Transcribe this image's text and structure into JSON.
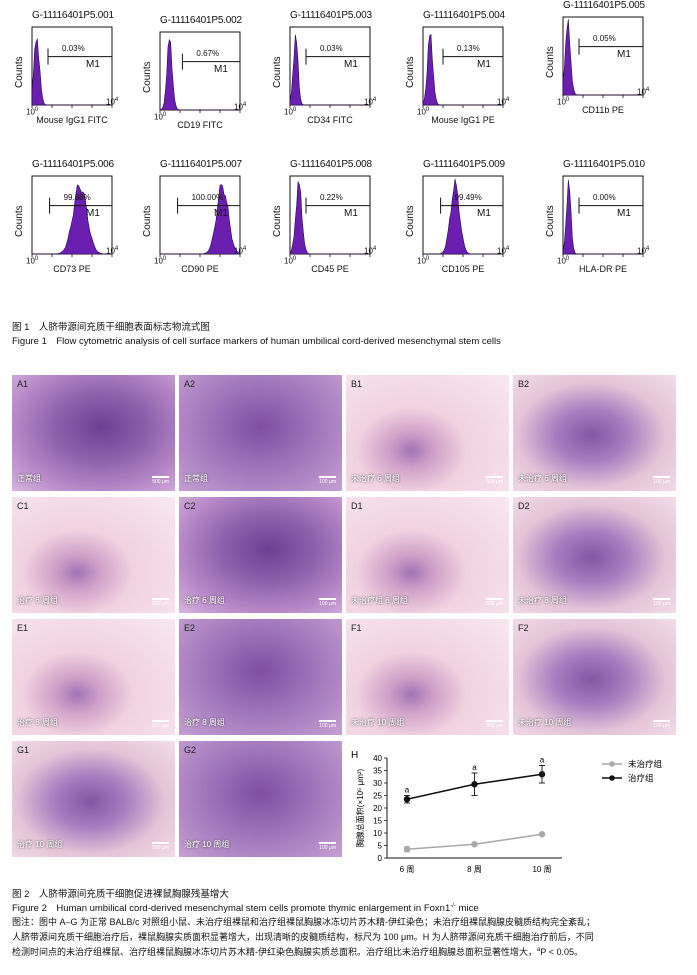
{
  "figure1": {
    "panels": [
      {
        "id": "G-11116401P5.001",
        "pct": "0.03%",
        "gate": "M1",
        "marker": "Mouse IgG1 FITC",
        "counts": "Counts"
      },
      {
        "id": "G-11116401P5.002",
        "pct": "0.67%",
        "gate": "M1",
        "marker": "CD19 FITC",
        "counts": "Counts"
      },
      {
        "id": "G-11116401P5.003",
        "pct": "0.03%",
        "gate": "M1",
        "marker": "CD34 FITC",
        "counts": "Counts"
      },
      {
        "id": "G-11116401P5.004",
        "pct": "0.13%",
        "gate": "M1",
        "marker": "Mouse IgG1 PE",
        "counts": "Counts"
      },
      {
        "id": "G-11116401P5.005",
        "pct": "0.05%",
        "gate": "M1",
        "marker": "CD11b PE",
        "counts": "Counts"
      },
      {
        "id": "G-11116401P5.006",
        "pct": "99.68%",
        "gate": "M1",
        "marker": "CD73 PE",
        "counts": "Counts"
      },
      {
        "id": "G-11116401P5.007",
        "pct": "100.00%",
        "gate": "M1",
        "marker": "CD90 PE",
        "counts": "Counts"
      },
      {
        "id": "G-11116401P5.008",
        "pct": "0.22%",
        "gate": "M1",
        "marker": "CD45 PE",
        "counts": "Counts"
      },
      {
        "id": "G-11116401P5.009",
        "pct": "99.49%",
        "gate": "M1",
        "marker": "CD105 PE",
        "counts": "Counts"
      },
      {
        "id": "G-11116401P5.010",
        "pct": "0.00%",
        "gate": "M1",
        "marker": "HLA-DR PE",
        "counts": "Counts"
      }
    ],
    "tick_base": "10",
    "tick_exp_min": "0",
    "tick_exp_max": "4",
    "caption_cn": "图 1　人脐带源间充质干细胞表面标志物流式图",
    "caption_en": "Figure 1　Flow cytometric analysis of cell surface markers of human umbilical cord-derived mesenchymal stem cells"
  },
  "figure2": {
    "tiles": [
      {
        "label": "A1",
        "group": "正常组",
        "scale": "500 μm"
      },
      {
        "label": "A2",
        "group": "正常组",
        "scale": "100 μm"
      },
      {
        "label": "B1",
        "group": "未治疗 6 周组",
        "scale": "500 μm"
      },
      {
        "label": "B2",
        "group": "未治疗 6 周组",
        "scale": "100 μm"
      },
      {
        "label": "C1",
        "group": "治疗 6 周组",
        "scale": "500 μm"
      },
      {
        "label": "C2",
        "group": "治疗 6 周组",
        "scale": "100 μm"
      },
      {
        "label": "D1",
        "group": "未治疗组 8 周组",
        "scale": "500 μm"
      },
      {
        "label": "D2",
        "group": "未治疗 8 周组",
        "scale": "100 μm"
      },
      {
        "label": "E1",
        "group": "治疗 8 周组",
        "scale": "500 μm"
      },
      {
        "label": "E2",
        "group": "治疗 8 周组",
        "scale": "100 μm"
      },
      {
        "label": "F1",
        "group": "未治疗 10 周组",
        "scale": "500 μm"
      },
      {
        "label": "F2",
        "group": "未治疗 10 周组",
        "scale": "100 μm"
      },
      {
        "label": "G1",
        "group": "治疗 10 周组",
        "scale": "500 μm"
      },
      {
        "label": "G2",
        "group": "治疗 10 周组",
        "scale": "100 μm"
      }
    ],
    "chart_label": "H",
    "caption_cn": "图 2　人脐带源间充质干细胞促进裸鼠胸腺残基增大",
    "caption_en": "Figure 2　Human umbilical cord-derived mesenchymal stem cells promote thymic enlargement in Foxn1",
    "caption_en_sup": "-/-",
    "caption_en_tail": " mice",
    "note_line1": "图注：图中 A–G 为正常 BALB/c 对照组小鼠、未治疗组裸鼠和治疗组裸鼠胸腺冰冻切片苏木精-伊红染色；未治疗组裸鼠胸腺皮髓质结构完全紊乱；",
    "note_line2": "人脐带源间充质干细胞治疗后，裸鼠胸腺实质面积显著增大，出现清晰的皮髓质结构，标尺为 100 μm。H 为人脐带源间充质干细胞治疗前后，不同",
    "note_line3": "检测时间点的未治疗组裸鼠、治疗组裸鼠胸腺冰冻切片苏木精-伊红染色胸腺实质总面积。治疗组比未治疗组胸腺总面积显著性增大，",
    "note_sig_sup": "a",
    "note_sig_tail": "P < 0.05。"
  },
  "chart_data": {
    "type": "line",
    "x": [
      "6 周",
      "8 周",
      "10 周"
    ],
    "ylabel": "胸腺总面积(×10⁵ μm²)",
    "ylim": [
      0,
      40
    ],
    "yticks": [
      0,
      5,
      10,
      15,
      20,
      25,
      30,
      35,
      40
    ],
    "legend_position": "top-right",
    "series": [
      {
        "name": "未治疗组",
        "color": "#a9a9a9",
        "values": [
          3.5,
          5.5,
          9.5
        ],
        "err": [
          1.0,
          0.5,
          0.5
        ],
        "marks": [
          "",
          "",
          ""
        ]
      },
      {
        "name": "治疗组",
        "color": "#111111",
        "values": [
          23.5,
          29.5,
          33.5
        ],
        "err": [
          1.5,
          4.5,
          3.5
        ],
        "marks": [
          "a",
          "a",
          "a"
        ]
      }
    ]
  },
  "colors": {
    "histogram_fill": "#6a1fb0",
    "histogram_edge": "#2a0a55"
  }
}
